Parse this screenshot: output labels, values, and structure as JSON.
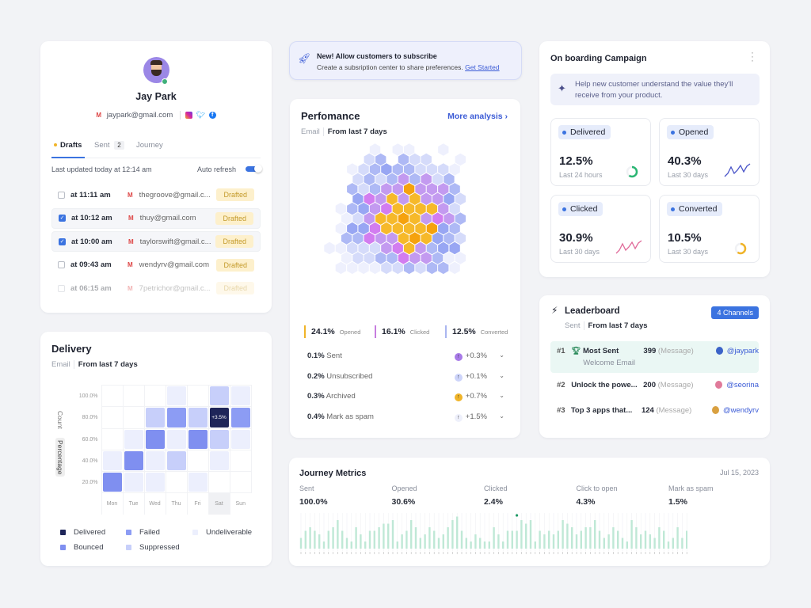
{
  "colors": {
    "accent": "#3b73e0",
    "delivered": "#1e2559",
    "bounced": "#7f8ff0",
    "failed": "#8c9cf4",
    "suppressed": "#c7cffa",
    "undeliverable": "#eceffd",
    "journey_bar": "#bfe8d6"
  },
  "profile": {
    "name": "Jay Park",
    "email": "jaypark@gmail.com",
    "tabs": [
      {
        "label": "Drafts"
      },
      {
        "label": "Sent",
        "count": "2"
      },
      {
        "label": "Journey"
      }
    ],
    "last_updated": "Last updated today at 12:14 am",
    "auto_refresh_label": "Auto refresh",
    "auto_refresh_on": true,
    "drafts": [
      {
        "time": "at 11:11 am",
        "email": "thegroove@gmail.c...",
        "status": "Drafted",
        "checked": false
      },
      {
        "time": "at 10:12 am",
        "email": "thuy@gmail.com",
        "status": "Drafted",
        "checked": true
      },
      {
        "time": "at 10:00 am",
        "email": "taylorswift@gmail.c...",
        "status": "Drafted",
        "checked": true
      },
      {
        "time": "at 09:43 am",
        "email": "wendyrv@gmail.com",
        "status": "Drafted",
        "checked": false
      },
      {
        "time": "at 06:15 am",
        "email": "7petrichor@gmail.c...",
        "status": "Drafted",
        "checked": false
      }
    ]
  },
  "delivery": {
    "title": "Delivery",
    "channel": "Email",
    "period": "From last 7 days",
    "y_toggle": [
      "Count",
      "Percentage"
    ],
    "y_ticks": [
      "100.0%",
      "80.0%",
      "60.0%",
      "40.0%",
      "20.0%"
    ],
    "days": [
      "Mon",
      "Tue",
      "Wed",
      "Thu",
      "Fri",
      "Sat",
      "Sun"
    ],
    "highlight_day": "Sat",
    "annotation": "+3.5%",
    "cells": [
      [
        "",
        "",
        "",
        "undeliverable",
        "",
        "suppressed",
        "undeliverable"
      ],
      [
        "",
        "",
        "suppressed",
        "failed",
        "suppressed",
        "delivered",
        "failed"
      ],
      [
        "",
        "undeliverable",
        "bounced",
        "undeliverable",
        "bounced",
        "suppressed",
        "undeliverable"
      ],
      [
        "undeliverable",
        "bounced",
        "undeliverable",
        "suppressed",
        "",
        "undeliverable",
        ""
      ],
      [
        "bounced",
        "undeliverable",
        "undeliverable",
        "",
        "undeliverable",
        "",
        ""
      ]
    ],
    "legend": [
      {
        "key": "delivered",
        "label": "Delivered"
      },
      {
        "key": "failed",
        "label": "Failed"
      },
      {
        "key": "undeliverable",
        "label": "Undeliverable"
      },
      {
        "key": "bounced",
        "label": "Bounced"
      },
      {
        "key": "suppressed",
        "label": "Suppressed"
      }
    ]
  },
  "banner": {
    "title": "New! Allow customers to subscribe",
    "text": "Create a subsription center to share preferences.",
    "link": "Get Started"
  },
  "performance": {
    "title": "Perfomance",
    "link": "More analysis",
    "channel": "Email",
    "period": "From last 7 days",
    "summary": [
      {
        "value": "24.1%",
        "label": "Opened",
        "color": "#f0b429"
      },
      {
        "value": "16.1%",
        "label": "Clicked",
        "color": "#c77ddf"
      },
      {
        "value": "12.5%",
        "label": "Converted",
        "color": "#aab6f0"
      }
    ],
    "rows": [
      {
        "value": "0.1%",
        "label": "Sent",
        "change": "+0.3%",
        "dot": "#a87be8"
      },
      {
        "value": "0.2%",
        "label": "Unsubscribed",
        "change": "+0.1%",
        "dot": "#cdd4fa"
      },
      {
        "value": "0.3%",
        "label": "Archived",
        "change": "+0.7%",
        "dot": "#f0b429"
      },
      {
        "value": "0.4%",
        "label": "Mark as spam",
        "change": "+1.5%",
        "dot": "#eef0fb"
      }
    ]
  },
  "onboarding": {
    "title": "On boarding Campaign",
    "tip": "Help new customer understand the value they'll receive from your product.",
    "stats": [
      {
        "label": "Delivered",
        "value": "12.5%",
        "period": "Last 24 hours",
        "viz": "ring",
        "color": "#2bb673",
        "fraction": 0.6
      },
      {
        "label": "Opened",
        "value": "40.3%",
        "period": "Last 30 days",
        "viz": "spark",
        "color": "#4a55c8"
      },
      {
        "label": "Clicked",
        "value": "30.9%",
        "period": "Last 30 days",
        "viz": "spark",
        "color": "#e06b9a"
      },
      {
        "label": "Converted",
        "value": "10.5%",
        "period": "Last 30 days",
        "viz": "ring",
        "color": "#f0b429",
        "fraction": 0.6
      }
    ]
  },
  "leaderboard": {
    "title": "Leaderboard",
    "badge": "4 Channels",
    "metric": "Sent",
    "period": "From last 7 days",
    "rows": [
      {
        "rank": "#1",
        "name": "Most Sent",
        "sub": "Welcome Email",
        "count": "399",
        "unit": "(Message)",
        "user": "@jaypark",
        "avatar": "#3b63c8"
      },
      {
        "rank": "#2",
        "name": "Unlock the powe...",
        "count": "200",
        "unit": "(Message)",
        "user": "@seorina",
        "avatar": "#e07a9a"
      },
      {
        "rank": "#3",
        "name": "Top 3 apps that...",
        "count": "124",
        "unit": "(Message)",
        "user": "@wendyrv",
        "avatar": "#d9a040"
      }
    ]
  },
  "journey": {
    "title": "Journey Metrics",
    "date": "Jul 15, 2023",
    "metrics": [
      {
        "label": "Sent",
        "value": "100.0%"
      },
      {
        "label": "Opened",
        "value": "30.6%"
      },
      {
        "label": "Clicked",
        "value": "2.4%"
      },
      {
        "label": "Click to open",
        "value": "4.3%"
      },
      {
        "label": "Mark as spam",
        "value": "1.5%"
      }
    ],
    "bars": [
      3,
      5,
      6,
      5,
      4,
      2,
      5,
      6,
      8,
      5,
      3,
      2,
      6,
      4,
      2,
      5,
      5,
      6,
      7,
      7,
      8,
      2,
      4,
      5,
      8,
      6,
      3,
      4,
      6,
      5,
      3,
      4,
      6,
      8,
      9,
      5,
      3,
      2,
      4,
      3,
      2,
      2,
      6,
      4,
      2,
      5,
      5,
      5,
      8,
      7,
      8,
      2,
      5,
      4,
      5,
      4,
      5,
      8,
      7,
      6,
      4,
      5,
      6,
      6,
      8,
      5,
      3,
      4,
      6,
      5,
      3,
      2,
      8,
      6,
      4,
      5,
      4,
      3,
      6,
      5,
      2,
      3,
      6,
      3,
      5
    ]
  }
}
